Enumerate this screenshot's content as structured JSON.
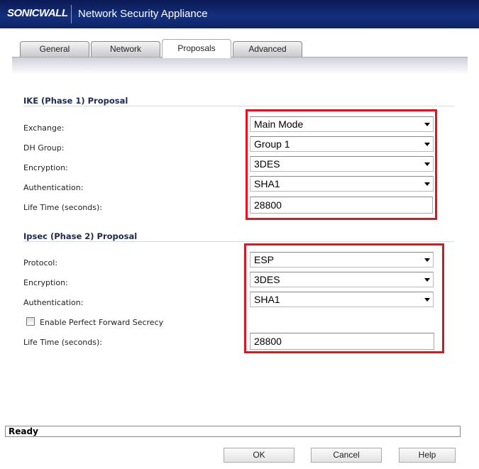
{
  "header": {
    "logo": "SONICWALL",
    "title": "Network Security Appliance"
  },
  "tabs": [
    {
      "label": "General"
    },
    {
      "label": "Network"
    },
    {
      "label": "Proposals",
      "active": true
    },
    {
      "label": "Advanced"
    }
  ],
  "ike": {
    "title": "IKE (Phase 1) Proposal",
    "exchange_label": "Exchange:",
    "exchange": "Main Mode",
    "dh_label": "DH Group:",
    "dh": "Group 1",
    "enc_label": "Encryption:",
    "enc": "3DES",
    "auth_label": "Authentication:",
    "auth": "SHA1",
    "life_label": "Life Time (seconds):",
    "life": "28800"
  },
  "ipsec": {
    "title": "Ipsec (Phase 2) Proposal",
    "protocol_label": "Protocol:",
    "protocol": "ESP",
    "enc_label": "Encryption:",
    "enc": "3DES",
    "auth_label": "Authentication:",
    "auth": "SHA1",
    "pfs_label": "Enable Perfect Forward Secrecy",
    "pfs_checked": false,
    "life_label": "Life Time (seconds):",
    "life": "28800"
  },
  "status": "Ready",
  "buttons": {
    "ok": "OK",
    "cancel": "Cancel",
    "help": "Help"
  },
  "colors": {
    "highlight": "#e0141f",
    "header": "#14307e"
  }
}
